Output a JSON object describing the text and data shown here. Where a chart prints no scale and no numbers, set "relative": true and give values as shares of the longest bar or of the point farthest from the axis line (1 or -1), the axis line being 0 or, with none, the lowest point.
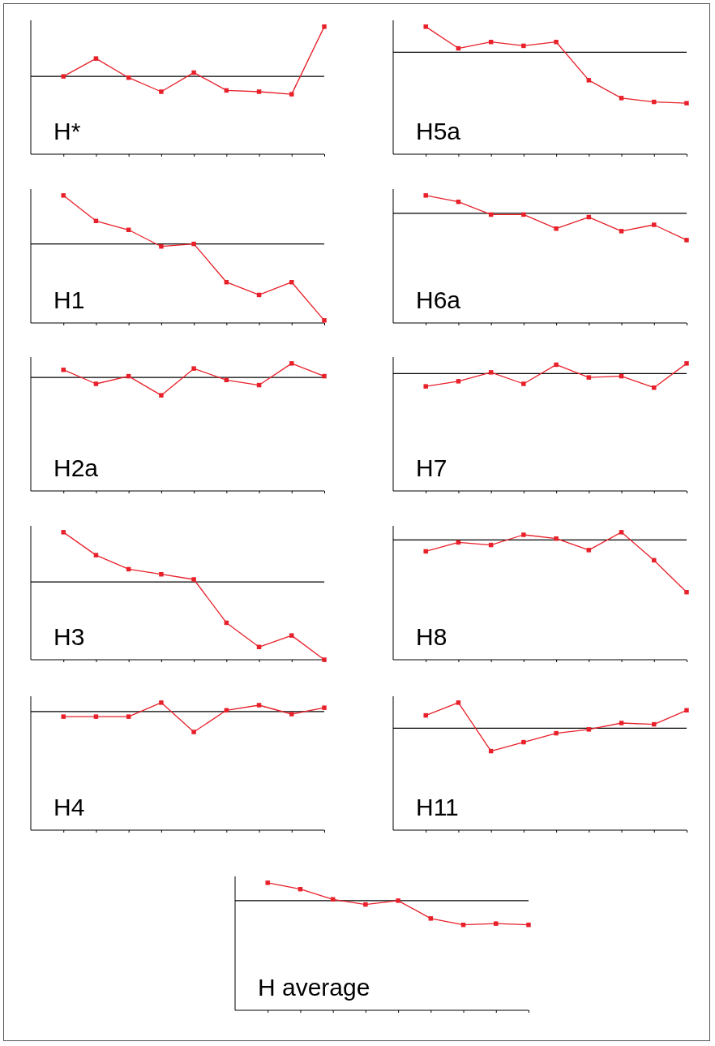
{
  "chart_data": [
    {
      "type": "line",
      "title": "H*",
      "relative": true,
      "marker": "square",
      "categories": [
        null,
        null,
        null,
        null,
        null,
        null,
        null,
        null,
        null
      ],
      "series": [
        {
          "color": "#e8202a",
          "values": [
            0.61,
            0.75,
            0.6,
            0.49,
            0.64,
            0.5,
            0.49,
            0.47,
            1.0
          ]
        }
      ],
      "ref_lines": [
        {
          "axis": "y",
          "value": 0.61,
          "color": "#000000"
        }
      ]
    },
    {
      "type": "line",
      "title": "H5a",
      "relative": true,
      "marker": "square",
      "categories": [
        null,
        null,
        null,
        null,
        null,
        null,
        null,
        null,
        null
      ],
      "series": [
        {
          "color": "#e8202a",
          "values": [
            1.0,
            0.83,
            0.88,
            0.85,
            0.88,
            0.58,
            0.44,
            0.41,
            0.4
          ]
        }
      ],
      "ref_lines": [
        {
          "axis": "y",
          "value": 0.8,
          "color": "#000000"
        }
      ]
    },
    {
      "type": "line",
      "title": "H1",
      "relative": true,
      "marker": "square",
      "categories": [
        null,
        null,
        null,
        null,
        null,
        null,
        null,
        null,
        null
      ],
      "series": [
        {
          "color": "#e8202a",
          "values": [
            1.0,
            0.8,
            0.73,
            0.6,
            0.62,
            0.32,
            0.22,
            0.32,
            0.02
          ]
        }
      ],
      "ref_lines": [
        {
          "axis": "y",
          "value": 0.62,
          "color": "#000000"
        }
      ]
    },
    {
      "type": "line",
      "title": "H6a",
      "relative": true,
      "marker": "square",
      "categories": [
        null,
        null,
        null,
        null,
        null,
        null,
        null,
        null,
        null
      ],
      "series": [
        {
          "color": "#e8202a",
          "values": [
            1.0,
            0.95,
            0.85,
            0.85,
            0.74,
            0.83,
            0.72,
            0.77,
            0.65
          ]
        }
      ],
      "ref_lines": [
        {
          "axis": "y",
          "value": 0.86,
          "color": "#000000"
        }
      ]
    },
    {
      "type": "line",
      "title": "H2a",
      "relative": true,
      "marker": "square",
      "categories": [
        null,
        null,
        null,
        null,
        null,
        null,
        null,
        null,
        null
      ],
      "series": [
        {
          "color": "#e8202a",
          "values": [
            0.95,
            0.84,
            0.9,
            0.75,
            0.96,
            0.87,
            0.83,
            1.0,
            0.9
          ]
        }
      ],
      "ref_lines": [
        {
          "axis": "y",
          "value": 0.89,
          "color": "#000000"
        }
      ]
    },
    {
      "type": "line",
      "title": "H7",
      "relative": true,
      "marker": "square",
      "categories": [
        null,
        null,
        null,
        null,
        null,
        null,
        null,
        null,
        null
      ],
      "series": [
        {
          "color": "#e8202a",
          "values": [
            0.82,
            0.86,
            0.93,
            0.84,
            0.99,
            0.89,
            0.9,
            0.81,
            1.0
          ]
        }
      ],
      "ref_lines": [
        {
          "axis": "y",
          "value": 0.92,
          "color": "#000000"
        }
      ]
    },
    {
      "type": "line",
      "title": "H3",
      "relative": true,
      "marker": "square",
      "categories": [
        null,
        null,
        null,
        null,
        null,
        null,
        null,
        null,
        null
      ],
      "series": [
        {
          "color": "#e8202a",
          "values": [
            1.0,
            0.82,
            0.71,
            0.67,
            0.63,
            0.29,
            0.1,
            0.19,
            0.0
          ]
        }
      ],
      "ref_lines": [
        {
          "axis": "y",
          "value": 0.61,
          "color": "#000000"
        }
      ]
    },
    {
      "type": "line",
      "title": "H8",
      "relative": true,
      "marker": "square",
      "categories": [
        null,
        null,
        null,
        null,
        null,
        null,
        null,
        null,
        null
      ],
      "series": [
        {
          "color": "#e8202a",
          "values": [
            0.85,
            0.92,
            0.9,
            0.98,
            0.95,
            0.86,
            1.0,
            0.78,
            0.53
          ]
        }
      ],
      "ref_lines": [
        {
          "axis": "y",
          "value": 0.94,
          "color": "#000000"
        }
      ]
    },
    {
      "type": "line",
      "title": "H4",
      "relative": true,
      "marker": "square",
      "categories": [
        null,
        null,
        null,
        null,
        null,
        null,
        null,
        null,
        null
      ],
      "series": [
        {
          "color": "#e8202a",
          "values": [
            0.89,
            0.89,
            0.89,
            1.0,
            0.77,
            0.94,
            0.98,
            0.91,
            0.96
          ]
        }
      ],
      "ref_lines": [
        {
          "axis": "y",
          "value": 0.93,
          "color": "#000000"
        }
      ]
    },
    {
      "type": "line",
      "title": "H11",
      "relative": true,
      "marker": "square",
      "categories": [
        null,
        null,
        null,
        null,
        null,
        null,
        null,
        null,
        null
      ],
      "series": [
        {
          "color": "#e8202a",
          "values": [
            0.9,
            1.0,
            0.62,
            0.69,
            0.76,
            0.79,
            0.84,
            0.83,
            0.94
          ]
        }
      ],
      "ref_lines": [
        {
          "axis": "y",
          "value": 0.8,
          "color": "#000000"
        }
      ]
    },
    {
      "type": "line",
      "title": "H average",
      "relative": true,
      "marker": "square",
      "categories": [
        null,
        null,
        null,
        null,
        null,
        null,
        null,
        null,
        null
      ],
      "series": [
        {
          "color": "#e8202a",
          "values": [
            1.0,
            0.95,
            0.87,
            0.83,
            0.86,
            0.72,
            0.67,
            0.68,
            0.67
          ]
        }
      ],
      "ref_lines": [
        {
          "axis": "y",
          "value": 0.86,
          "color": "#000000"
        }
      ]
    }
  ]
}
